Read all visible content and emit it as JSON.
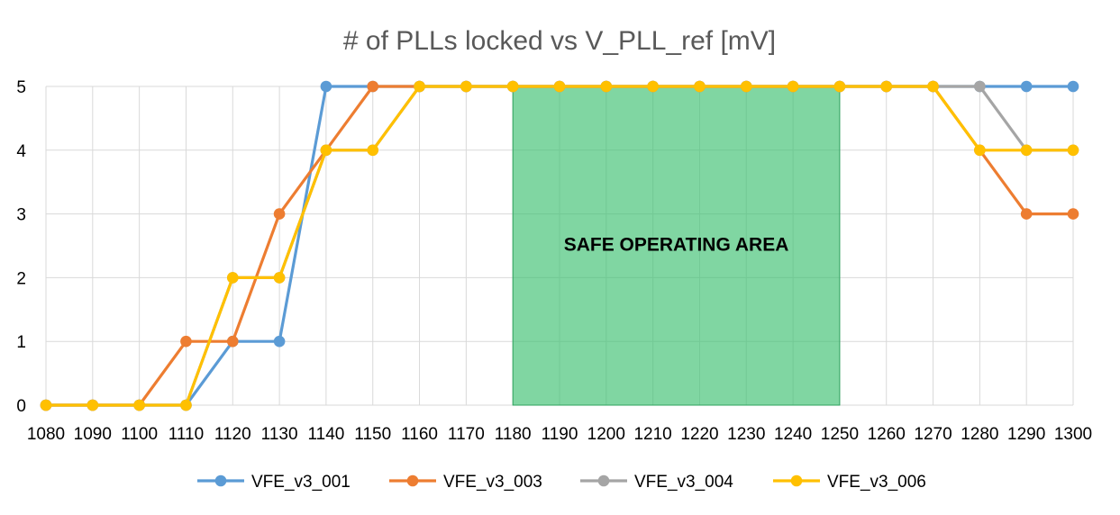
{
  "chart_data": {
    "type": "line",
    "title": "# of PLLs locked vs V_PLL_ref [mV]",
    "xlabel": "",
    "ylabel": "",
    "x": [
      1080,
      1090,
      1100,
      1110,
      1120,
      1130,
      1140,
      1150,
      1160,
      1170,
      1180,
      1190,
      1200,
      1210,
      1220,
      1230,
      1240,
      1250,
      1260,
      1270,
      1280,
      1290,
      1300
    ],
    "xlim": [
      1080,
      1300
    ],
    "ylim": [
      0,
      5
    ],
    "yticks": [
      0,
      1,
      2,
      3,
      4,
      5
    ],
    "grid": true,
    "legend_position": "bottom",
    "series": [
      {
        "name": "VFE_v3_001",
        "color": "#5B9BD5",
        "values": [
          0,
          0,
          0,
          0,
          1,
          1,
          5,
          5,
          5,
          5,
          5,
          5,
          5,
          5,
          5,
          5,
          5,
          5,
          5,
          5,
          5,
          5,
          5
        ]
      },
      {
        "name": "VFE_v3_003",
        "color": "#ED7D31",
        "values": [
          0,
          0,
          0,
          1,
          1,
          3,
          4,
          5,
          5,
          5,
          5,
          5,
          5,
          5,
          5,
          5,
          5,
          5,
          5,
          5,
          4,
          3,
          3
        ]
      },
      {
        "name": "VFE_v3_004",
        "color": "#A5A5A5",
        "values": [
          0,
          0,
          0,
          0,
          2,
          2,
          4,
          4,
          5,
          5,
          5,
          5,
          5,
          5,
          5,
          5,
          5,
          5,
          5,
          5,
          5,
          4,
          4
        ]
      },
      {
        "name": "VFE_v3_006",
        "color": "#FFC000",
        "values": [
          0,
          0,
          0,
          0,
          2,
          2,
          4,
          4,
          5,
          5,
          5,
          5,
          5,
          5,
          5,
          5,
          5,
          5,
          5,
          5,
          4,
          4,
          4
        ]
      }
    ],
    "annotations": [
      {
        "label": "SAFE OPERATING AREA",
        "x_range": [
          1180,
          1250
        ],
        "y_range": [
          0,
          5
        ],
        "color": "#3EC172"
      }
    ]
  }
}
